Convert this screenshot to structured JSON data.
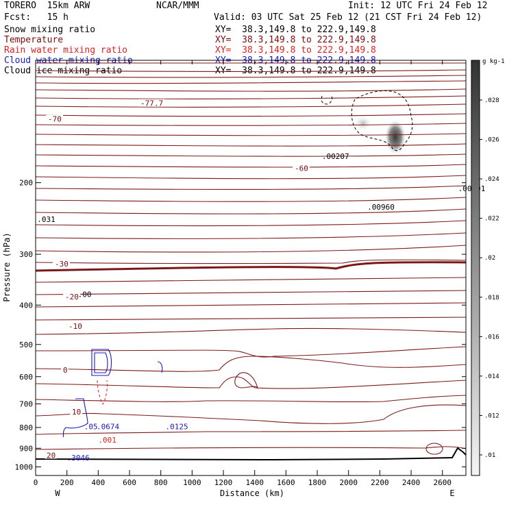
{
  "header": {
    "model": "TORERO  15km ARW",
    "org": "NCAR/MMM",
    "init": "Init: 12 UTC Fri 24 Feb 12",
    "fcst": "Fcst:   15 h",
    "valid": "Valid: 03 UTC Sat 25 Feb 12 (21 CST Fri 24 Feb 12)"
  },
  "legend": [
    {
      "label": "Snow mixing ratio",
      "xy": "XY=  38.3,149.8 to 222.9,149.8",
      "color": "#000000"
    },
    {
      "label": "Temperature",
      "xy": "XY=  38.3,149.8 to 222.9,149.8",
      "color": "#7a0c0c"
    },
    {
      "label": "Rain water mixing ratio",
      "xy": "XY=  38.3,149.8 to 222.9,149.8",
      "color": "#e02020"
    },
    {
      "label": "Cloud water mixing ratio",
      "xy": "XY=  38.3,149.8 to 222.9,149.8",
      "color": "#1818c8"
    },
    {
      "label": "Cloud ice mixing ratio",
      "xy": "XY=  38.3,149.8 to 222.9,149.8",
      "color": "#000000"
    }
  ],
  "chart_data": {
    "type": "contour",
    "xlabel": "Distance (km)",
    "ylabel": "Pressure (hPa)",
    "xlim": [
      0,
      2750
    ],
    "ylim": [
      1050,
      100
    ],
    "y_scale": "log",
    "x_ticks": [
      0,
      200,
      400,
      600,
      800,
      1000,
      1200,
      1400,
      1600,
      1800,
      2000,
      2200,
      2400,
      2600
    ],
    "y_ticks": [
      200,
      300,
      400,
      500,
      600,
      700,
      800,
      900,
      1000
    ],
    "x_end_labels": {
      "left": "W",
      "right": "E"
    },
    "temperature_contours": [
      {
        "level": -77.7,
        "label": "-77.7",
        "p_left": 128
      },
      {
        "level": -70,
        "label": "-70",
        "p_left": 140
      },
      {
        "level": -60,
        "label": "-60",
        "p_left": 185
      },
      {
        "level": -30,
        "label": "-30",
        "p_left": 318
      },
      {
        "level": -20,
        "label": "-20",
        "p_left": 383
      },
      {
        "level": -10,
        "label": "-10",
        "p_left": 452
      },
      {
        "level": 0,
        "label": "0",
        "p_left": 580
      },
      {
        "level": 10,
        "label": "10",
        "p_left": 735
      },
      {
        "level": 20,
        "label": "20",
        "p_left": 940
      }
    ],
    "annotations": [
      {
        "text": ".00207",
        "x": 1830,
        "p": 175
      },
      {
        "text": ".00960",
        "x": 2120,
        "p": 233
      },
      {
        "text": ".00001",
        "x": 2700,
        "p": 210
      },
      {
        "text": ".00",
        "x": 270,
        "p": 382
      },
      {
        "text": ".031",
        "x": 10,
        "p": 250
      },
      {
        "text": ".05",
        "x": 310,
        "p": 808
      },
      {
        "text": ".0674",
        "x": 390,
        "p": 808
      },
      {
        "text": ".001",
        "x": 400,
        "p": 872
      },
      {
        "text": ".0125",
        "x": 830,
        "p": 808
      },
      {
        "text": ".3046",
        "x": 200,
        "p": 965
      }
    ],
    "colorbar": {
      "unit": "g kg-1",
      "ticks": [
        ".01",
        ".012",
        ".014",
        ".016",
        ".018",
        ".02",
        ".022",
        ".024",
        ".026",
        ".028"
      ]
    }
  }
}
